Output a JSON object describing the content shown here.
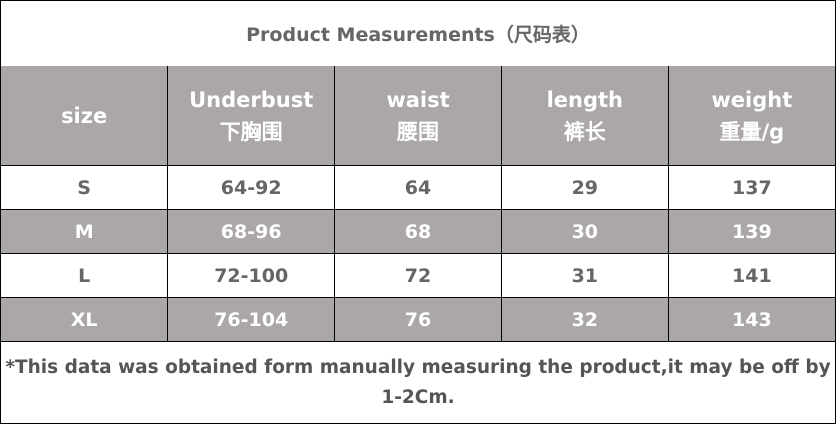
{
  "title": "Product Measurements（尺码表）",
  "headers": [
    {
      "en": "size",
      "zh": ""
    },
    {
      "en": "Underbust",
      "zh": "下胸围"
    },
    {
      "en": "waist",
      "zh": "腰围"
    },
    {
      "en": "length",
      "zh": "裤长"
    },
    {
      "en": "weight",
      "zh": "重量/g"
    }
  ],
  "rows": [
    [
      "S",
      "64-92",
      "64",
      "29",
      "137"
    ],
    [
      "M",
      "68-96",
      "68",
      "30",
      "139"
    ],
    [
      "L",
      "72-100",
      "72",
      "31",
      "141"
    ],
    [
      "XL",
      "76-104",
      "76",
      "32",
      "143"
    ]
  ],
  "footnote": "*This data was obtained form manually measuring the product,it may be off by 1-2Cm.",
  "colors": {
    "header_bg": "#aba7a6",
    "text": "#666666"
  }
}
